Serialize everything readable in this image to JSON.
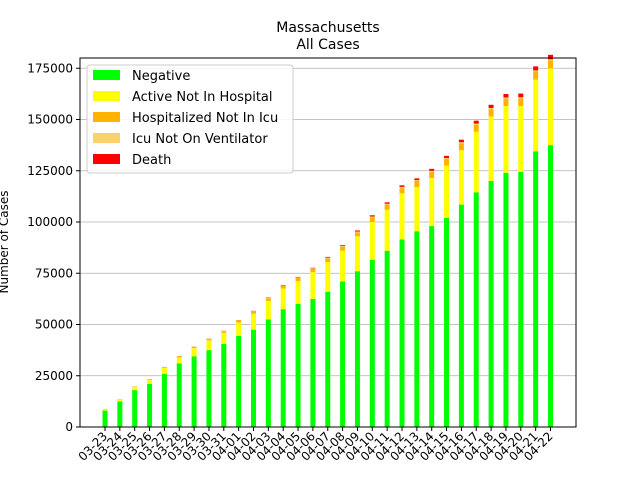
{
  "chart_data": {
    "type": "bar",
    "stacked": true,
    "title": "Massachusetts",
    "subtitle": "All Cases",
    "xlabel": "",
    "ylabel": "Number of Cases",
    "ylim": [
      0,
      180000
    ],
    "yticks": [
      0,
      25000,
      50000,
      75000,
      100000,
      125000,
      150000,
      175000
    ],
    "ytick_labels": [
      "0",
      "25000",
      "50000",
      "75000",
      "100000",
      "125000",
      "150000",
      "175000"
    ],
    "grid": "horizontal",
    "legend_position": "top-left",
    "categories": [
      "03-23",
      "03-24",
      "03-25",
      "03-26",
      "03-27",
      "03-28",
      "03-29",
      "03-30",
      "03-31",
      "04-01",
      "04-02",
      "04-03",
      "04-04",
      "04-05",
      "04-06",
      "04-07",
      "04-08",
      "04-09",
      "04-10",
      "04-11",
      "04-12",
      "04-13",
      "04-14",
      "04-15",
      "04-16",
      "04-17",
      "04-18",
      "04-19",
      "04-20",
      "04-21",
      "04-22"
    ],
    "series": [
      {
        "name": "Negative",
        "color": "#00ff00",
        "values": [
          8000,
          12500,
          18000,
          21000,
          26000,
          31000,
          34500,
          37500,
          40500,
          44500,
          47500,
          52500,
          57500,
          60000,
          62500,
          66000,
          71000,
          76000,
          81500,
          86000,
          91500,
          95500,
          98000,
          102000,
          108500,
          114500,
          120000,
          124000,
          124500,
          134500,
          137500
        ]
      },
      {
        "name": "Active Not In Hospital",
        "color": "#ffff00",
        "values": [
          700,
          1000,
          1500,
          2000,
          2800,
          3000,
          4000,
          4800,
          5400,
          6500,
          7800,
          9000,
          10000,
          11200,
          13000,
          14500,
          15000,
          17000,
          18500,
          20000,
          22500,
          21500,
          23500,
          25500,
          26500,
          29500,
          31500,
          32500,
          32000,
          35000,
          37500
        ]
      },
      {
        "name": "Hospitalized Not In Icu",
        "color": "#ffb300",
        "values": [
          100,
          150,
          200,
          300,
          400,
          500,
          600,
          700,
          800,
          900,
          1000,
          1200,
          1300,
          1500,
          1600,
          1800,
          1900,
          2000,
          2300,
          2500,
          2700,
          3000,
          3000,
          3200,
          3400,
          3500,
          3600,
          3700,
          3800,
          3900,
          3800
        ]
      },
      {
        "name": "Icu Not On Ventilator",
        "color": "#ffd070",
        "values": [
          20,
          30,
          40,
          50,
          60,
          70,
          90,
          110,
          130,
          160,
          190,
          220,
          250,
          280,
          300,
          320,
          340,
          360,
          380,
          400,
          420,
          440,
          460,
          480,
          500,
          510,
          520,
          530,
          540,
          550,
          560
        ]
      },
      {
        "name": "Death",
        "color": "#ff0000",
        "values": [
          9,
          11,
          15,
          25,
          35,
          44,
          48,
          56,
          89,
          122,
          154,
          192,
          216,
          231,
          260,
          356,
          433,
          503,
          599,
          686,
          756,
          844,
          957,
          1108,
          1245,
          1404,
          1560,
          1706,
          1809,
          1961,
          2182
        ]
      }
    ]
  }
}
